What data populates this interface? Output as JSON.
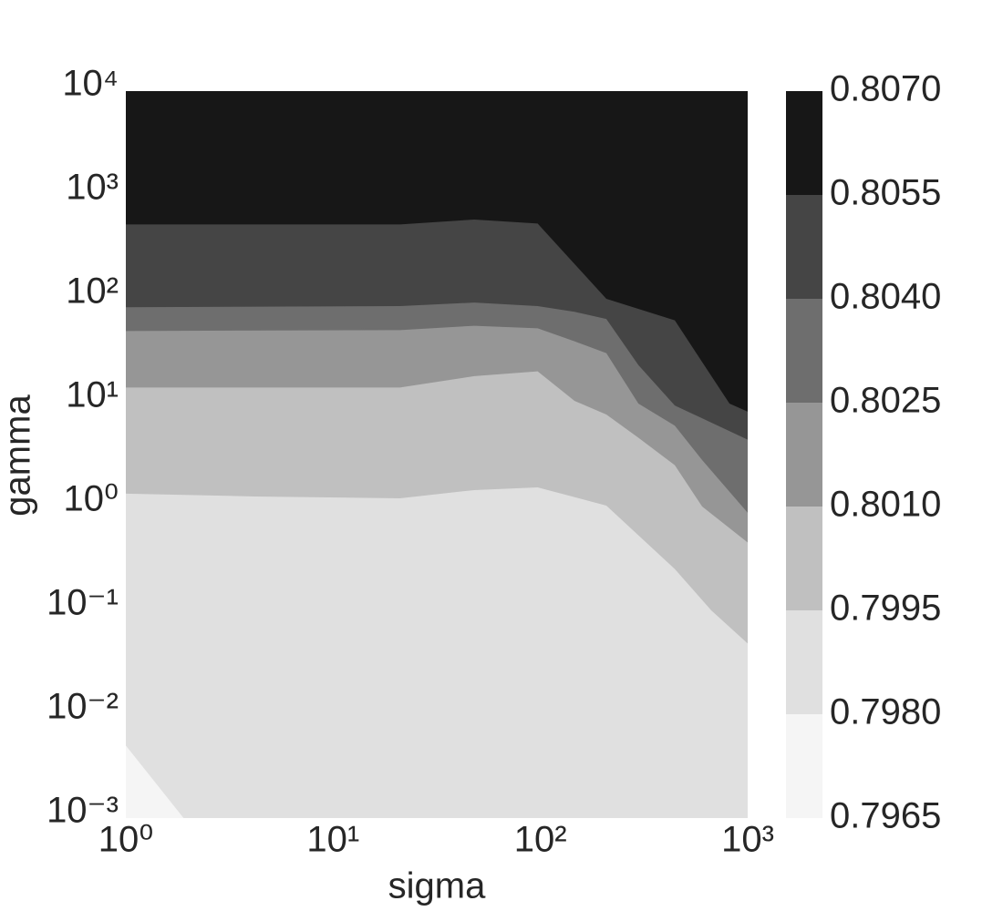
{
  "chart_data": {
    "type": "contourf",
    "xlabel": "sigma",
    "ylabel": "gamma",
    "xscale": "log",
    "yscale": "log",
    "xlim": [
      1,
      1000
    ],
    "ylim": [
      0.001,
      10000
    ],
    "xticks": [
      {
        "value": 1,
        "label": "10⁰"
      },
      {
        "value": 10,
        "label": "10¹"
      },
      {
        "value": 100,
        "label": "10²"
      },
      {
        "value": 1000,
        "label": "10³"
      }
    ],
    "yticks": [
      {
        "value": 0.001,
        "label": "10⁻³"
      },
      {
        "value": 0.01,
        "label": "10⁻²"
      },
      {
        "value": 0.1,
        "label": "10⁻¹"
      },
      {
        "value": 1,
        "label": "10⁰"
      },
      {
        "value": 10,
        "label": "10¹"
      },
      {
        "value": 100,
        "label": "10²"
      },
      {
        "value": 1000,
        "label": "10³"
      },
      {
        "value": 10000,
        "label": "10⁴"
      }
    ],
    "levels": [
      0.7965,
      {
        "value": 0.798,
        "label": "0.7980"
      },
      0.7995,
      {
        "value": 0.801,
        "label": "0.8010"
      },
      0.8025,
      {
        "value": 0.804,
        "label": "0.8040"
      },
      0.8055,
      {
        "value": 0.807,
        "label": "0.8070"
      }
    ],
    "colors": [
      "#f5f5f5",
      "#e0e0e0",
      "#c0c0c0",
      "#969696",
      "#6e6e6e",
      "#454545",
      "#171717"
    ],
    "contours": [
      {
        "x": [
          1,
          1.9
        ],
        "y": [
          0.005,
          0.001
        ]
      },
      {
        "x": [
          1,
          4.2,
          21,
          48,
          97,
          208,
          445,
          667,
          1000
        ],
        "y": [
          1.33,
          1.25,
          1.2,
          1.44,
          1.53,
          1.02,
          0.25,
          0.1,
          0.048
        ]
      },
      {
        "x": [
          1,
          21,
          48,
          97,
          146,
          208,
          297,
          445,
          603,
          1000
        ],
        "y": [
          14,
          14,
          18,
          20,
          10.4,
          7.7,
          4.6,
          2.5,
          1.0,
          0.45
        ]
      },
      {
        "x": [
          1,
          21,
          48,
          97,
          146,
          208,
          297,
          445,
          603,
          1000
        ],
        "y": [
          49,
          50,
          55,
          52,
          39,
          30,
          9.8,
          6.0,
          2.8,
          0.87
        ]
      },
      {
        "x": [
          1,
          21,
          48,
          97,
          146,
          208,
          297,
          445,
          1000
        ],
        "y": [
          83,
          85,
          92,
          85,
          75,
          64,
          23,
          9.4,
          4.4
        ]
      },
      {
        "x": [
          1,
          21,
          48,
          97,
          208,
          445,
          817,
          1000
        ],
        "y": [
          520,
          520,
          580,
          530,
          100,
          62,
          9.8,
          8.2
        ]
      }
    ]
  }
}
